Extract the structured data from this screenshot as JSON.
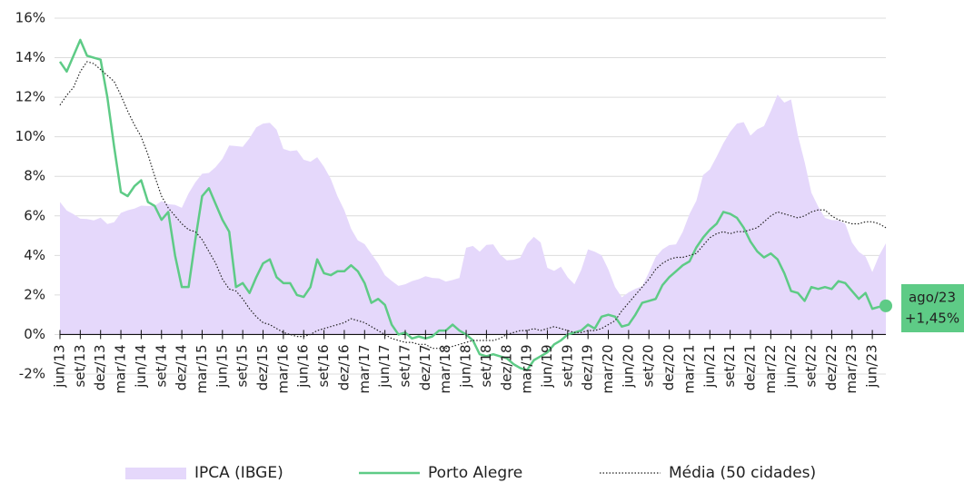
{
  "chart_data": {
    "type": "line",
    "categories": [
      "jun/13",
      null,
      null,
      "set/13",
      null,
      null,
      "dez/13",
      null,
      null,
      "mar/14",
      null,
      null,
      "jun/14",
      null,
      null,
      "set/14",
      null,
      null,
      "dez/14",
      null,
      null,
      "mar/15",
      null,
      null,
      "jun/15",
      null,
      null,
      "set/15",
      null,
      null,
      "dez/15",
      null,
      null,
      "mar/16",
      null,
      null,
      "jun/16",
      null,
      null,
      "set/16",
      null,
      null,
      "dez/16",
      null,
      null,
      "mar/17",
      null,
      null,
      "jun/17",
      null,
      null,
      "set/17",
      null,
      null,
      "dez/17",
      null,
      null,
      "mar/18",
      null,
      null,
      "jun/18",
      null,
      null,
      "set/18",
      null,
      null,
      "dez/18",
      null,
      null,
      "mar/19",
      null,
      null,
      "jun/19",
      null,
      null,
      "set/19",
      null,
      null,
      "dez/19",
      null,
      null,
      "mar/20",
      null,
      null,
      "jun/20",
      null,
      null,
      "set/20",
      null,
      null,
      "dez/20",
      null,
      null,
      "mar/21",
      null,
      null,
      "jun/21",
      null,
      null,
      "set/21",
      null,
      null,
      "dez/21",
      null,
      null,
      "mar/22",
      null,
      null,
      "jun/22",
      null,
      null,
      "set/22",
      null,
      null,
      "dez/22",
      null,
      null,
      "mar/23",
      null,
      null,
      "jun/23",
      null,
      null
    ],
    "series": [
      {
        "name": "IPCA (IBGE)",
        "style": "area",
        "color": "#e5d8fb",
        "values": [
          6.7,
          6.27,
          6.09,
          5.86,
          5.84,
          5.77,
          5.91,
          5.59,
          5.68,
          6.15,
          6.28,
          6.37,
          6.52,
          6.5,
          6.51,
          6.75,
          6.59,
          6.56,
          6.41,
          7.14,
          7.7,
          8.13,
          8.17,
          8.47,
          8.89,
          9.56,
          9.53,
          9.49,
          9.93,
          10.48,
          10.67,
          10.71,
          10.36,
          9.39,
          9.28,
          9.32,
          8.84,
          8.74,
          8.97,
          8.48,
          7.87,
          6.99,
          6.29,
          5.35,
          4.76,
          4.57,
          4.08,
          3.6,
          3.0,
          2.71,
          2.46,
          2.54,
          2.7,
          2.8,
          2.95,
          2.86,
          2.84,
          2.68,
          2.76,
          2.86,
          4.39,
          4.48,
          4.19,
          4.53,
          4.56,
          4.05,
          3.75,
          3.78,
          3.89,
          4.58,
          4.94,
          4.66,
          3.37,
          3.22,
          3.43,
          2.89,
          2.54,
          3.27,
          4.31,
          4.19,
          4.01,
          3.3,
          2.4,
          1.88,
          2.13,
          2.31,
          2.44,
          3.14,
          3.92,
          4.31,
          4.52,
          4.56,
          5.2,
          6.1,
          6.76,
          8.06,
          8.35,
          8.99,
          9.68,
          10.25,
          10.67,
          10.74,
          10.06,
          10.38,
          10.54,
          11.3,
          12.13,
          11.73,
          11.89,
          10.07,
          8.73,
          7.17,
          6.47,
          5.9,
          5.79,
          5.77,
          5.6,
          4.65,
          4.18,
          3.94,
          3.16,
          3.99,
          4.61
        ]
      },
      {
        "name": "Porto Alegre",
        "style": "solid",
        "color": "#5ecb86",
        "values": [
          13.8,
          13.3,
          14.1,
          14.9,
          14.1,
          14.0,
          13.9,
          12.0,
          9.5,
          7.2,
          7.0,
          7.5,
          7.8,
          6.7,
          6.5,
          5.8,
          6.2,
          4.0,
          2.4,
          2.4,
          4.8,
          7.0,
          7.4,
          6.6,
          5.8,
          5.2,
          2.4,
          2.6,
          2.1,
          2.9,
          3.6,
          3.8,
          2.9,
          2.6,
          2.6,
          2.0,
          1.9,
          2.4,
          3.8,
          3.1,
          3.0,
          3.2,
          3.2,
          3.5,
          3.2,
          2.6,
          1.6,
          1.8,
          1.5,
          0.5,
          0.0,
          0.1,
          -0.2,
          -0.1,
          -0.2,
          -0.1,
          0.2,
          0.2,
          0.5,
          0.2,
          0.0,
          -0.3,
          -1.0,
          -1.1,
          -1.0,
          -1.1,
          -1.2,
          -1.5,
          -1.7,
          -1.8,
          -1.3,
          -1.1,
          -0.9,
          -0.5,
          -0.3,
          0.0,
          0.1,
          0.2,
          0.5,
          0.3,
          0.9,
          1.0,
          0.9,
          0.4,
          0.5,
          1.0,
          1.6,
          1.7,
          1.8,
          2.5,
          2.9,
          3.2,
          3.5,
          3.7,
          4.4,
          4.9,
          5.3,
          5.6,
          6.2,
          6.1,
          5.9,
          5.4,
          4.7,
          4.2,
          3.9,
          4.1,
          3.8,
          3.1,
          2.2,
          2.1,
          1.7,
          2.4,
          2.3,
          2.4,
          2.3,
          2.7,
          2.6,
          2.2,
          1.8,
          2.1,
          1.3,
          1.4,
          1.45
        ]
      },
      {
        "name": "Média (50 cidades)",
        "style": "dotted",
        "color": "#222222",
        "values": [
          11.6,
          12.1,
          12.5,
          13.3,
          13.8,
          13.7,
          13.4,
          13.1,
          12.8,
          12.1,
          11.3,
          10.6,
          10.0,
          9.1,
          8.0,
          7.0,
          6.4,
          6.0,
          5.6,
          5.3,
          5.2,
          4.8,
          4.2,
          3.6,
          2.8,
          2.3,
          2.2,
          1.8,
          1.3,
          0.9,
          0.6,
          0.5,
          0.3,
          0.1,
          0.0,
          -0.1,
          -0.1,
          0.0,
          0.2,
          0.3,
          0.4,
          0.5,
          0.6,
          0.8,
          0.7,
          0.6,
          0.4,
          0.2,
          0.0,
          -0.2,
          -0.3,
          -0.4,
          -0.4,
          -0.5,
          -0.5,
          -0.7,
          -0.7,
          -0.7,
          -0.6,
          -0.5,
          -0.4,
          -0.3,
          -0.3,
          -0.3,
          -0.3,
          -0.2,
          0.0,
          0.1,
          0.2,
          0.2,
          0.3,
          0.2,
          0.3,
          0.4,
          0.3,
          0.2,
          0.1,
          0.1,
          0.2,
          0.2,
          0.3,
          0.5,
          0.7,
          1.2,
          1.6,
          2.0,
          2.4,
          2.8,
          3.3,
          3.6,
          3.8,
          3.9,
          3.9,
          4.0,
          4.1,
          4.5,
          4.9,
          5.1,
          5.2,
          5.1,
          5.2,
          5.2,
          5.3,
          5.4,
          5.7,
          6.0,
          6.2,
          6.1,
          6.0,
          5.9,
          6.0,
          6.2,
          6.3,
          6.3,
          6.0,
          5.8,
          5.7,
          5.6,
          5.6,
          5.7,
          5.7,
          5.6,
          5.4
        ]
      }
    ],
    "ylim": [
      -2,
      16
    ],
    "yticks": [
      {
        "value": -2,
        "label": "-2%"
      },
      {
        "value": 0,
        "label": "0%"
      },
      {
        "value": 2,
        "label": "2%"
      },
      {
        "value": 4,
        "label": "4%"
      },
      {
        "value": 6,
        "label": "6%"
      },
      {
        "value": 8,
        "label": "8%"
      },
      {
        "value": 10,
        "label": "10%"
      },
      {
        "value": 12,
        "label": "12%"
      },
      {
        "value": 14,
        "label": "14%"
      },
      {
        "value": 16,
        "label": "16%"
      }
    ],
    "grid": true,
    "end_label": {
      "date": "ago/23",
      "text": "+1,45%"
    },
    "legend": "bottom"
  }
}
